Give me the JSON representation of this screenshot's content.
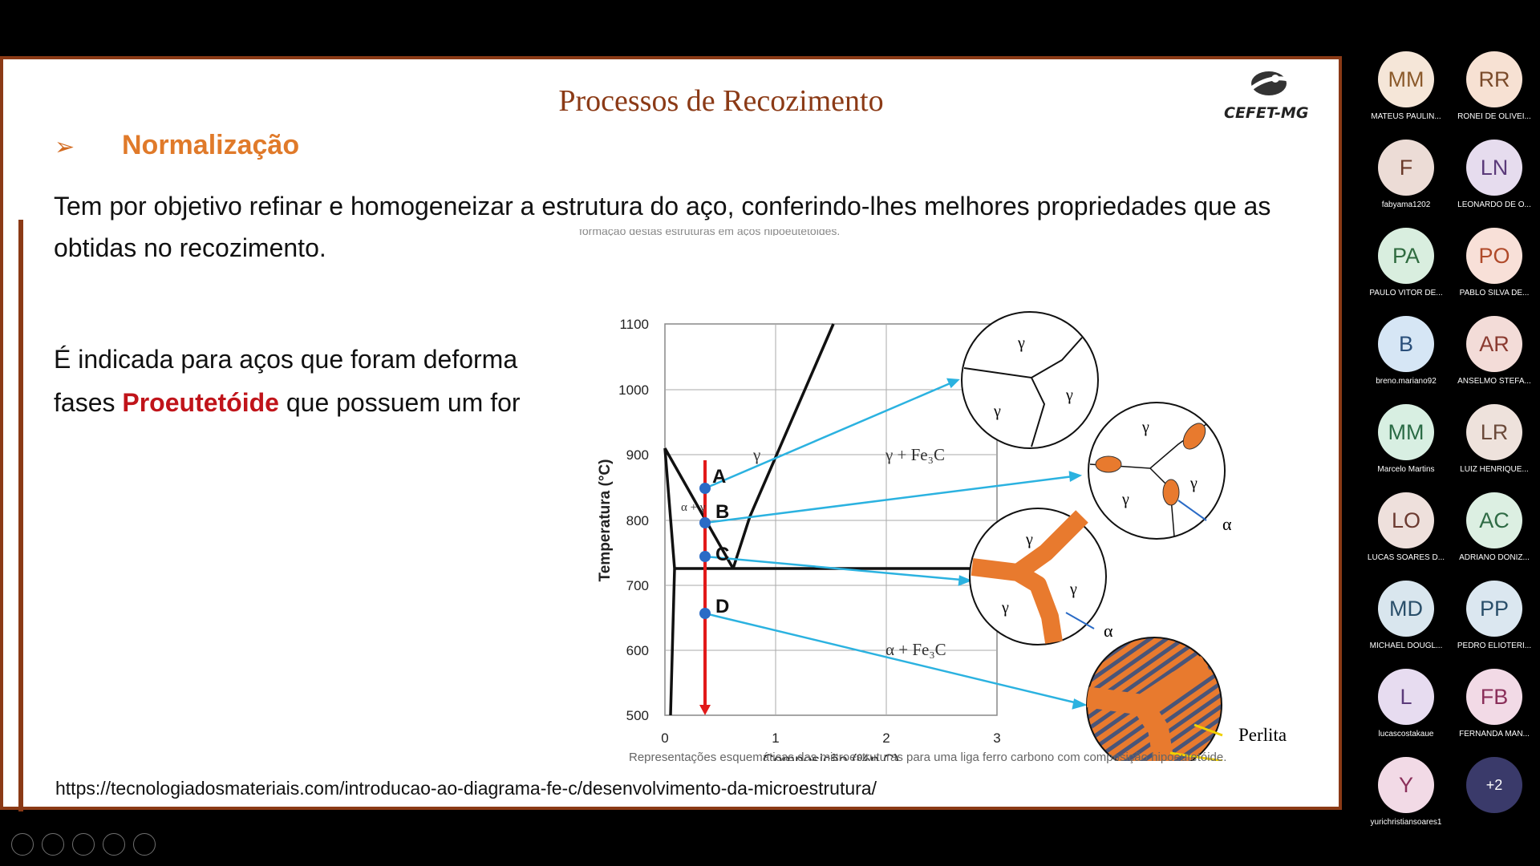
{
  "slide": {
    "title": "Processos de Recozimento",
    "logo_text": "CEFET-MG",
    "bullet_symbol": "➢",
    "heading": "Normalização",
    "paragraph1": "Tem por objetivo refinar e homogeneizar  a estrutura do aço, conferindo-lhes melhores propriedades que as obtidas no recozimento.",
    "paragraph2_line1": "É indicada para aços que foram deforma",
    "paragraph2_line2_a": "fases ",
    "paragraph2_highlight": "Proeutetóide",
    "paragraph2_line2_b": " que possuem um for",
    "caption": "Representações esquemáticas das microestruturas para uma liga ferro carbono com composição hipoeutetóide.",
    "cut_caption": "formação destas estruturas em aços hipoeutetóides.",
    "url": "https://tecnologiadosmateriais.com/introducao-ao-diagrama-fe-c/desenvolvimento-da-microestrutura/"
  },
  "diagram": {
    "y_axis_label": "Temperatura (°C)",
    "x_axis_label": "Composição (%p C)",
    "y_ticks": [
      "1100",
      "1000",
      "900",
      "800",
      "700",
      "600",
      "500"
    ],
    "x_ticks": [
      "0",
      "1",
      "2",
      "3"
    ],
    "point_labels": [
      "A",
      "B",
      "C",
      "D"
    ],
    "region_labels": {
      "gamma": "γ",
      "gamma_fe3c": "γ + Fe₃C",
      "alpha_fe3c": "α + Fe₃C",
      "alpha": "α",
      "alpha_gamma": "α + γ",
      "perlita": "Perlita"
    }
  },
  "participants": [
    {
      "initials": "MM",
      "name": "MATEUS PAULIN...",
      "bg": "#f5e6d8",
      "fg": "#8b5a2b"
    },
    {
      "initials": "RR",
      "name": "RONEI DE OLIVEI...",
      "bg": "#f7e1d3",
      "fg": "#7a4a2a"
    },
    {
      "initials": "F",
      "name": "fabyama1202",
      "bg": "#ecdcd6",
      "fg": "#6a3a2a"
    },
    {
      "initials": "LN",
      "name": "LEONARDO DE O...",
      "bg": "#e6dcee",
      "fg": "#5b3a7a"
    },
    {
      "initials": "PA",
      "name": "PAULO VITOR DE...",
      "bg": "#d9eedf",
      "fg": "#2f6b3f"
    },
    {
      "initials": "PO",
      "name": "PABLO SILVA DE...",
      "bg": "#f8e0d8",
      "fg": "#b04a2a"
    },
    {
      "initials": "B",
      "name": "breno.mariano92",
      "bg": "#d6e6f5",
      "fg": "#2a4f7a"
    },
    {
      "initials": "AR",
      "name": "ANSELMO STEFA...",
      "bg": "#f3dcd8",
      "fg": "#8a3a30"
    },
    {
      "initials": "MM",
      "name": "Marcelo Martins",
      "bg": "#d8efe2",
      "fg": "#2a6b45"
    },
    {
      "initials": "LR",
      "name": "LUIZ HENRIQUE...",
      "bg": "#eee2dc",
      "fg": "#6b4a3a"
    },
    {
      "initials": "LO",
      "name": "LUCAS SOARES D...",
      "bg": "#eee0dc",
      "fg": "#6b3a30"
    },
    {
      "initials": "AC",
      "name": "ADRIANO DONIZ...",
      "bg": "#dcefe2",
      "fg": "#2f6b45"
    },
    {
      "initials": "MD",
      "name": "MICHAEL DOUGL...",
      "bg": "#d9e6ee",
      "fg": "#2a4f6a"
    },
    {
      "initials": "PP",
      "name": "PEDRO ELIOTERI...",
      "bg": "#dbe7f0",
      "fg": "#2a4f6a"
    },
    {
      "initials": "L",
      "name": "lucascostakaue",
      "bg": "#e7dcf0",
      "fg": "#5b3a7a"
    },
    {
      "initials": "FB",
      "name": "FERNANDA MAN...",
      "bg": "#f2dae6",
      "fg": "#8a2f5a"
    },
    {
      "initials": "Y",
      "name": "yurichristiansoares1",
      "bg": "#f2dae6",
      "fg": "#8a2f5a"
    },
    {
      "initials": "+2",
      "name": "",
      "bg": "#3a3a6a",
      "fg": "#ffffff"
    }
  ]
}
